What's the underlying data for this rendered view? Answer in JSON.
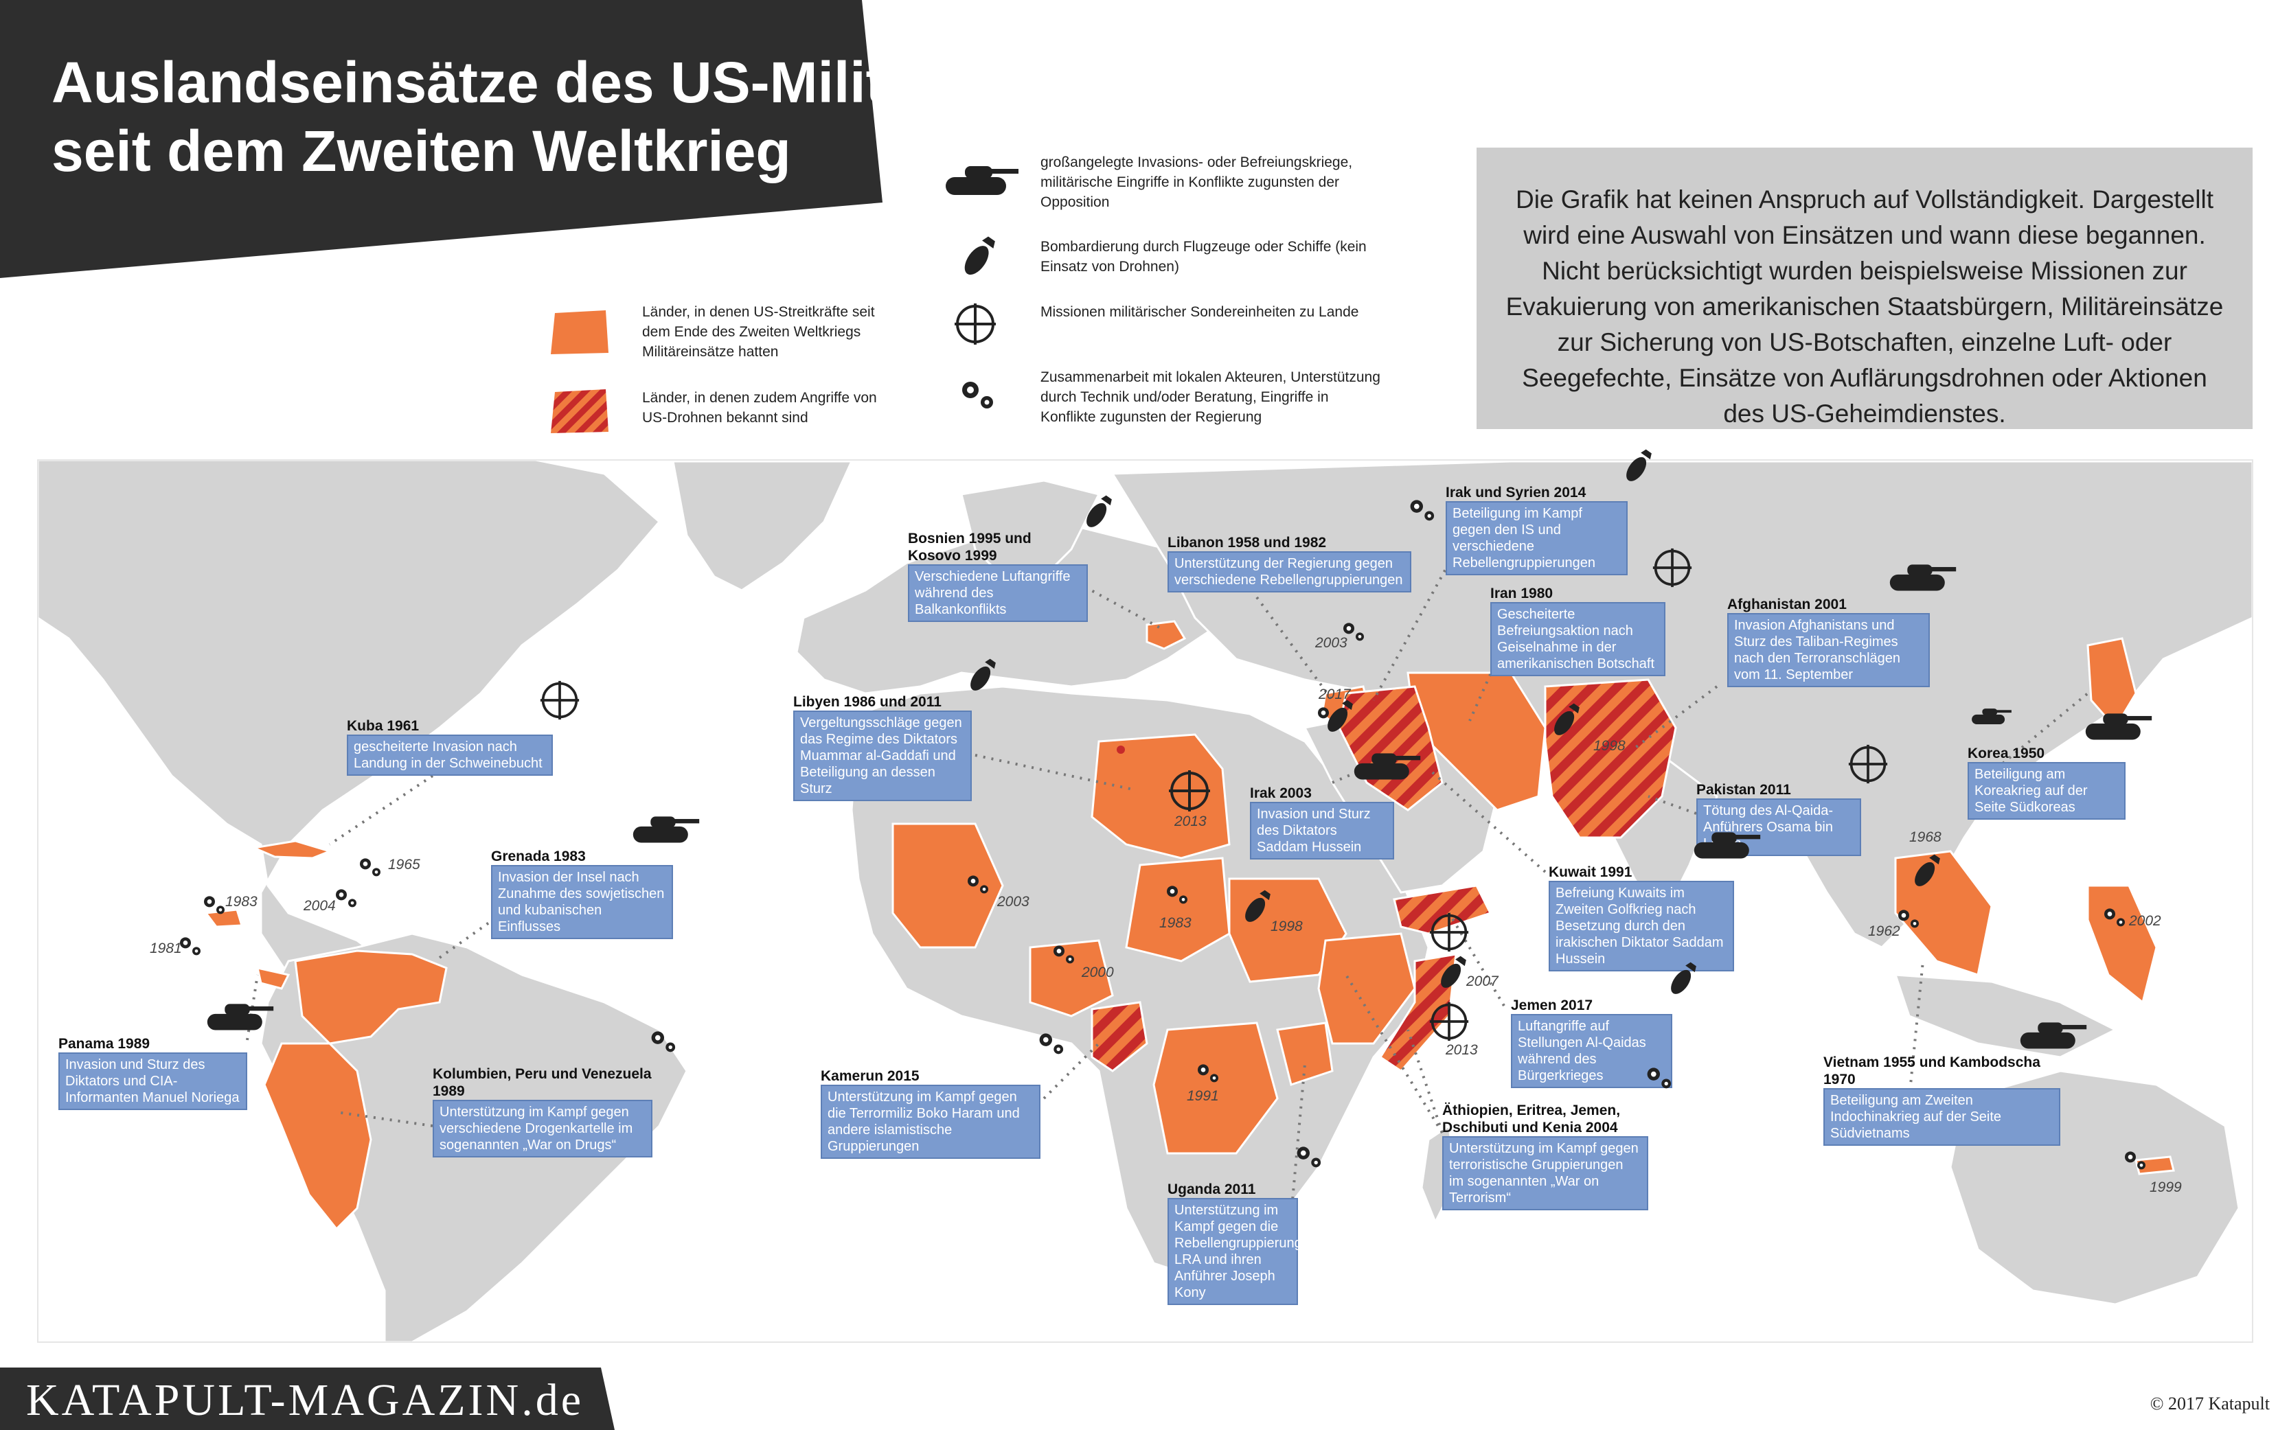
{
  "title": {
    "line1": "Auslandseinsätze des US-Militärs",
    "line2": "seit dem Zweiten Weltkrieg"
  },
  "disclaimer": "Die Grafik hat keinen Anspruch auf Vollständigkeit. Dargestellt wird eine Auswahl von Einsätzen und wann diese begannen. Nicht berücksichtigt wurden beispielsweise Missionen zur Evakuierung von amerikanischen Staatsbürgern, Militäreinsätze zur Sicherung von US-Botschaften, einzelne Luft- oder Seegefechte, Einsätze von Auflärungsdrohnen oder Aktionen des US-Geheimdienstes.",
  "legend": {
    "orange": "Länder, in denen US-Streitkräfte seit dem Ende des Zweiten Weltkriegs Militäreinsätze hatten",
    "striped": "Länder, in denen zudem Angriffe von US-Drohnen bekannt sind",
    "tank": "großangelegte Invasions- oder Befreiungskriege, militärische Eingriffe in Konflikte zugunsten der Opposition",
    "bomb": "Bombardierung durch Flugzeuge oder Schiffe (kein Einsatz von Drohnen)",
    "crosshair": "Missionen militärischer Sondereinheiten zu Lande",
    "gears": "Zusammenarbeit mit lokalen Akteuren, Unterstützung durch Technik und/oder Beratung, Eingriffe in Konflikte zugunsten der Regierung"
  },
  "colors": {
    "orange": "#f07b3f",
    "stripe": "#c62a2a",
    "land": "#d3d3d3",
    "box": "#7b9bcf",
    "dark": "#2e2e2e"
  },
  "annotations": [
    {
      "title": "Kuba 1961",
      "text": "gescheiterte Invasion nach Landung in der Schweinebucht",
      "icon": "crosshair-icon"
    },
    {
      "title": "Grenada 1983",
      "text": "Invasion der Insel nach Zunahme des sowjetischen und kubanischen Einflusses",
      "icon": "tank-icon"
    },
    {
      "title": "Panama 1989",
      "text": "Invasion und Sturz des Diktators und CIA-Informanten Manuel Noriega",
      "icon": "tank-icon"
    },
    {
      "title": "Kolumbien, Peru und Venezuela 1989",
      "text": "Unterstützung im Kampf gegen verschiedene Drogenkartelle im sogenannten „War on Drugs“",
      "icon": "gears-icon"
    },
    {
      "title": "Bosnien 1995 und Kosovo 1999",
      "text": "Verschiedene Luftangriffe während des Balkankonflikts",
      "icon": "bomb-icon"
    },
    {
      "title": "Libanon 1958 und 1982",
      "text": "Unterstützung der Regierung gegen verschiedene Rebellengruppierungen",
      "icon": "gears-icon"
    },
    {
      "title": "Irak und Syrien 2014",
      "text": "Beteiligung im Kampf gegen den IS und verschiedene Rebellengruppierungen",
      "icon": "bomb-icon"
    },
    {
      "title": "Iran 1980",
      "text": "Gescheiterte Befreiungsaktion nach Geiselnahme in der amerikanischen Botschaft",
      "icon": "crosshair-icon"
    },
    {
      "title": "Afghanistan 2001",
      "text": "Invasion Afghanistans und Sturz des Taliban-Regimes nach den Terroranschlägen vom 11. September",
      "icon": "tank-icon"
    },
    {
      "title": "Libyen 1986 und 2011",
      "text": "Vergeltungsschläge gegen das Regime des Diktators Muammar al-Gaddafi und Beteiligung an dessen Sturz",
      "icon": "bomb-icon"
    },
    {
      "title": "Irak 2003",
      "text": "Invasion und Sturz des Diktators Saddam Hussein",
      "icon": "tank-icon"
    },
    {
      "title": "Pakistan 2011",
      "text": "Tötung des Al-Qaida-Anführers Osama bin Laden",
      "icon": "crosshair-icon"
    },
    {
      "title": "Korea 1950",
      "text": "Beteiligung am Koreakrieg auf der Seite Südkoreas",
      "icon": "tank-icon"
    },
    {
      "title": "Kuwait 1991",
      "text": "Befreiung Kuwaits im Zweiten Golfkrieg nach Besetzung durch den irakischen Diktator Saddam Hussein",
      "icon": "tank-icon"
    },
    {
      "title": "Jemen 2017",
      "text": "Luftangriffe auf Stellungen Al-Qaidas während des Bürgerkrieges",
      "icon": "bomb-icon"
    },
    {
      "title": "Kamerun 2015",
      "text": "Unterstützung im Kampf gegen die Terrormiliz Boko Haram und andere islamistische Gruppierungen",
      "icon": "gears-icon"
    },
    {
      "title": "Äthiopien, Eritrea, Jemen, Dschibuti und Kenia 2004",
      "text": "Unterstützung im Kampf gegen terroristische Gruppierungen im sogenannten „War on Terrorism“",
      "icon": "gears-icon"
    },
    {
      "title": "Uganda 2011",
      "text": "Unterstützung im Kampf gegen die Rebellengruppierung LRA und ihren Anführer Joseph Kony",
      "icon": "gears-icon"
    },
    {
      "title": "Vietnam 1955 und Kambodscha 1970",
      "text": "Beteiligung am Zweiten Indochinakrieg auf der Seite Südvietnams",
      "icon": "tank-icon"
    }
  ],
  "map_years": [
    "1965",
    "2004",
    "1983",
    "1981",
    "2003",
    "2017",
    "2013",
    "2003",
    "1983",
    "1998",
    "2000",
    "1991",
    "2007",
    "2013",
    "1998",
    "1968",
    "1962",
    "2002",
    "1999"
  ],
  "brand": "KATAPULT-MAGAZIN.de",
  "copyright": "© 2017 Katapult"
}
